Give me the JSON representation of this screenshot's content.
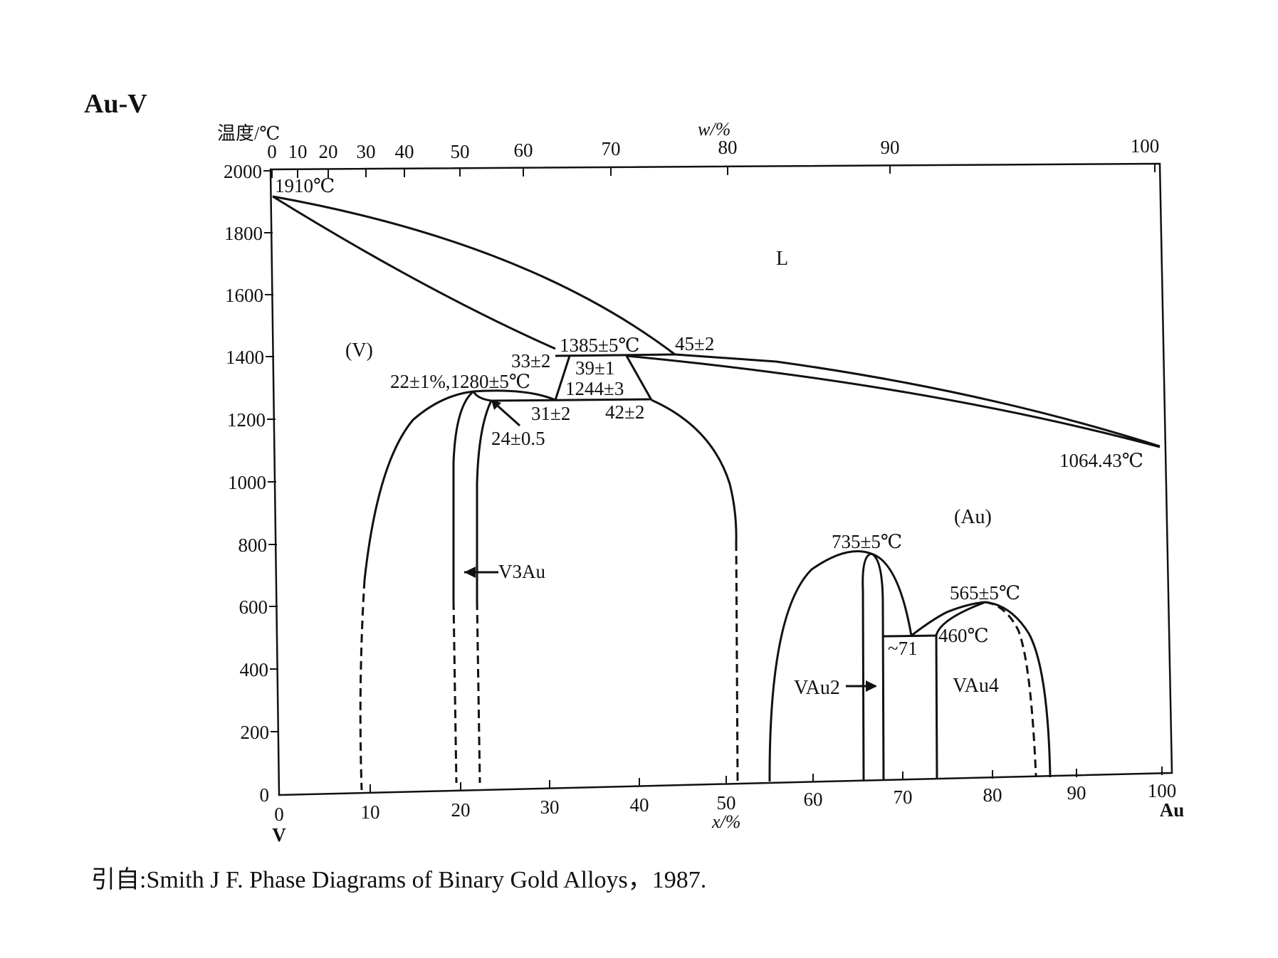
{
  "title": "Au-V",
  "axes": {
    "y_label": "温度/℃",
    "y_ticks": [
      "2000",
      "1800",
      "1600",
      "1400",
      "1200",
      "1000",
      "800",
      "600",
      "400",
      "200",
      "0"
    ],
    "top_label": "w/%",
    "top_ticks": [
      "0",
      "10",
      "20",
      "30",
      "40",
      "50",
      "60",
      "70",
      "80",
      "90",
      "100"
    ],
    "bottom_label": "x/%",
    "bottom_ticks": [
      "0",
      "10",
      "20",
      "30",
      "40",
      "50",
      "60",
      "70",
      "80",
      "90",
      "100"
    ],
    "left_element": "V",
    "right_element": "Au"
  },
  "regions": {
    "liquid": "L",
    "v_solid": "(V)",
    "au_solid": "(Au)",
    "v3au": "V3Au",
    "vau2": "VAu2",
    "vau4": "VAu4"
  },
  "annotations": {
    "v_melting": "1910℃",
    "au_melting": "1064.43℃",
    "peritectic": "1385±5℃",
    "peritectic_left": "33±2",
    "peritectic_mid": "39±1",
    "peritectic_right": "45±2",
    "v3au_max": "22±1%,1280±5℃",
    "eutectoid_temp": "1244±3",
    "eutectoid_left": "31±2",
    "eutectoid_right": "42±2",
    "v3au_comp": "24±0.5",
    "vau2_max": "735±5℃",
    "vau4_max": "565±5℃",
    "vau4_eutectoid": "460℃",
    "vau_comp": "~71"
  },
  "citation": "引自:Smith J F.  Phase Diagrams of Binary Gold Alloys，1987."
}
